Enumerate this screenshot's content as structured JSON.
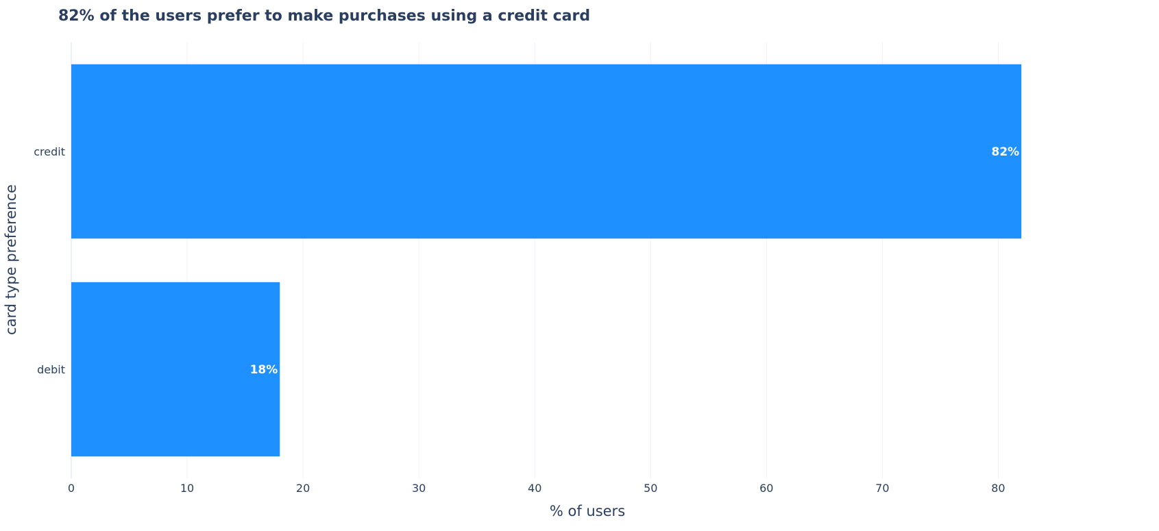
{
  "chart_data": {
    "type": "bar",
    "orientation": "horizontal",
    "title": "82% of the users prefer to make purchases using a credit card",
    "xlabel": "% of users",
    "ylabel": "card type preference",
    "categories": [
      "credit",
      "debit"
    ],
    "values": [
      82,
      18
    ],
    "data_labels": [
      "82%",
      "18%"
    ],
    "xlim": [
      0,
      89.5
    ],
    "x_ticks": [
      0,
      10,
      20,
      30,
      40,
      50,
      60,
      70,
      80
    ],
    "grid": true,
    "legend": "none",
    "colors": {
      "bar": "#1E90FF",
      "title_text": "#2A3F5F",
      "axis_text": "#2A3F5F",
      "grid": "#EBF0F8",
      "data_label_text": "#FFFFFF"
    }
  }
}
